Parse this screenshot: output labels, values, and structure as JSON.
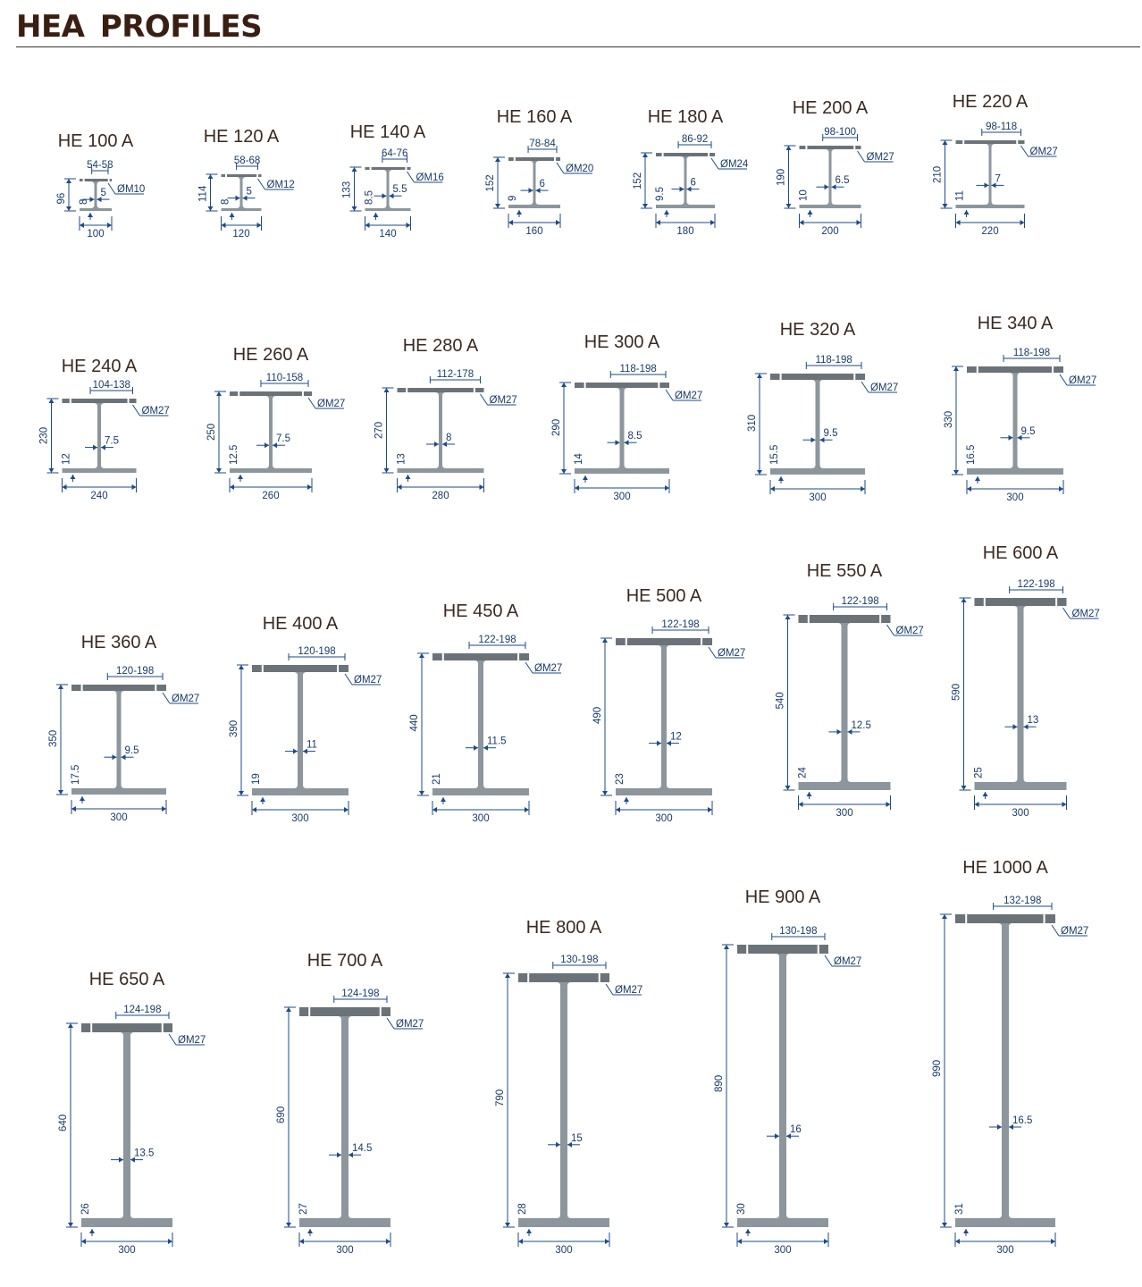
{
  "title": "HEA PROFILES",
  "colors": {
    "title": "#3a1e12",
    "dimension": "#1f4a86",
    "steel": "#8c969c",
    "flange": "#6b7378"
  },
  "profiles": [
    {
      "name": "HE 100 A",
      "h": "96",
      "b": "100",
      "tf": "8",
      "tw": "5",
      "gauge": "54-58",
      "bolt": "ØM10"
    },
    {
      "name": "HE 120 A",
      "h": "114",
      "b": "120",
      "tf": "8",
      "tw": "5",
      "gauge": "58-68",
      "bolt": "ØM12"
    },
    {
      "name": "HE 140 A",
      "h": "133",
      "b": "140",
      "tf": "8.5",
      "tw": "5.5",
      "gauge": "64-76",
      "bolt": "ØM16"
    },
    {
      "name": "HE 160 A",
      "h": "152",
      "b": "160",
      "tf": "9",
      "tw": "6",
      "gauge": "78-84",
      "bolt": "ØM20"
    },
    {
      "name": "HE 180 A",
      "h": "152",
      "b": "180",
      "tf": "9.5",
      "tw": "6",
      "gauge": "86-92",
      "bolt": "ØM24"
    },
    {
      "name": "HE 200 A",
      "h": "190",
      "b": "200",
      "tf": "10",
      "tw": "6.5",
      "gauge": "98-100",
      "bolt": "ØM27"
    },
    {
      "name": "HE 220 A",
      "h": "210",
      "b": "220",
      "tf": "11",
      "tw": "7",
      "gauge": "98-118",
      "bolt": "ØM27"
    },
    {
      "name": "HE 240 A",
      "h": "230",
      "b": "240",
      "tf": "12",
      "tw": "7.5",
      "gauge": "104-138",
      "bolt": "ØM27"
    },
    {
      "name": "HE 260 A",
      "h": "250",
      "b": "260",
      "tf": "12.5",
      "tw": "7.5",
      "gauge": "110-158",
      "bolt": "ØM27"
    },
    {
      "name": "HE 280 A",
      "h": "270",
      "b": "280",
      "tf": "13",
      "tw": "8",
      "gauge": "112-178",
      "bolt": "ØM27"
    },
    {
      "name": "HE 300 A",
      "h": "290",
      "b": "300",
      "tf": "14",
      "tw": "8.5",
      "gauge": "118-198",
      "bolt": "ØM27"
    },
    {
      "name": "HE 320 A",
      "h": "310",
      "b": "300",
      "tf": "15.5",
      "tw": "9.5",
      "gauge": "118-198",
      "bolt": "ØM27"
    },
    {
      "name": "HE 340 A",
      "h": "330",
      "b": "300",
      "tf": "16.5",
      "tw": "9.5",
      "gauge": "118-198",
      "bolt": "ØM27"
    },
    {
      "name": "HE 360 A",
      "h": "350",
      "b": "300",
      "tf": "17.5",
      "tw": "9.5",
      "gauge": "120-198",
      "bolt": "ØM27"
    },
    {
      "name": "HE 400 A",
      "h": "390",
      "b": "300",
      "tf": "19",
      "tw": "11",
      "gauge": "120-198",
      "bolt": "ØM27"
    },
    {
      "name": "HE 450 A",
      "h": "440",
      "b": "300",
      "tf": "21",
      "tw": "11.5",
      "gauge": "122-198",
      "bolt": "ØM27"
    },
    {
      "name": "HE 500 A",
      "h": "490",
      "b": "300",
      "tf": "23",
      "tw": "12",
      "gauge": "122-198",
      "bolt": "ØM27"
    },
    {
      "name": "HE 550 A",
      "h": "540",
      "b": "300",
      "tf": "24",
      "tw": "12.5",
      "gauge": "122-198",
      "bolt": "ØM27"
    },
    {
      "name": "HE 600 A",
      "h": "590",
      "b": "300",
      "tf": "25",
      "tw": "13",
      "gauge": "122-198",
      "bolt": "ØM27"
    },
    {
      "name": "HE 650 A",
      "h": "640",
      "b": "300",
      "tf": "26",
      "tw": "13.5",
      "gauge": "124-198",
      "bolt": "ØM27"
    },
    {
      "name": "HE 700 A",
      "h": "690",
      "b": "300",
      "tf": "27",
      "tw": "14.5",
      "gauge": "124-198",
      "bolt": "ØM27"
    },
    {
      "name": "HE 800 A",
      "h": "790",
      "b": "300",
      "tf": "28",
      "tw": "15",
      "gauge": "130-198",
      "bolt": "ØM27"
    },
    {
      "name": "HE 900 A",
      "h": "890",
      "b": "300",
      "tf": "30",
      "tw": "16",
      "gauge": "130-198",
      "bolt": "ØM27"
    },
    {
      "name": "HE 1000 A",
      "h": "990",
      "b": "300",
      "tf": "31",
      "tw": "16.5",
      "gauge": "132-198",
      "bolt": "ØM27"
    }
  ]
}
